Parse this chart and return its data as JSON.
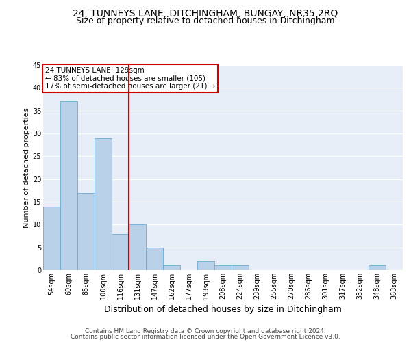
{
  "title1": "24, TUNNEYS LANE, DITCHINGHAM, BUNGAY, NR35 2RQ",
  "title2": "Size of property relative to detached houses in Ditchingham",
  "xlabel": "Distribution of detached houses by size in Ditchingham",
  "ylabel": "Number of detached properties",
  "categories": [
    "54sqm",
    "69sqm",
    "85sqm",
    "100sqm",
    "116sqm",
    "131sqm",
    "147sqm",
    "162sqm",
    "177sqm",
    "193sqm",
    "208sqm",
    "224sqm",
    "239sqm",
    "255sqm",
    "270sqm",
    "286sqm",
    "301sqm",
    "317sqm",
    "332sqm",
    "348sqm",
    "363sqm"
  ],
  "values": [
    14,
    37,
    17,
    29,
    8,
    10,
    5,
    1,
    0,
    2,
    1,
    1,
    0,
    0,
    0,
    0,
    0,
    0,
    0,
    1,
    0
  ],
  "bar_color": "#b8d0e8",
  "bar_edge_color": "#6aaad4",
  "vline_color": "#cc0000",
  "annotation_text": "24 TUNNEYS LANE: 129sqm\n← 83% of detached houses are smaller (105)\n17% of semi-detached houses are larger (21) →",
  "annotation_box_color": "#ffffff",
  "annotation_box_edge": "#cc0000",
  "ylim": [
    0,
    45
  ],
  "yticks": [
    0,
    5,
    10,
    15,
    20,
    25,
    30,
    35,
    40,
    45
  ],
  "footer1": "Contains HM Land Registry data © Crown copyright and database right 2024.",
  "footer2": "Contains public sector information licensed under the Open Government Licence v3.0.",
  "bg_color": "#e8eef8",
  "fig_bg": "#ffffff",
  "title1_fontsize": 10,
  "title2_fontsize": 9,
  "xlabel_fontsize": 9,
  "ylabel_fontsize": 8,
  "tick_fontsize": 7,
  "footer_fontsize": 6.5,
  "ann_fontsize": 7.5
}
